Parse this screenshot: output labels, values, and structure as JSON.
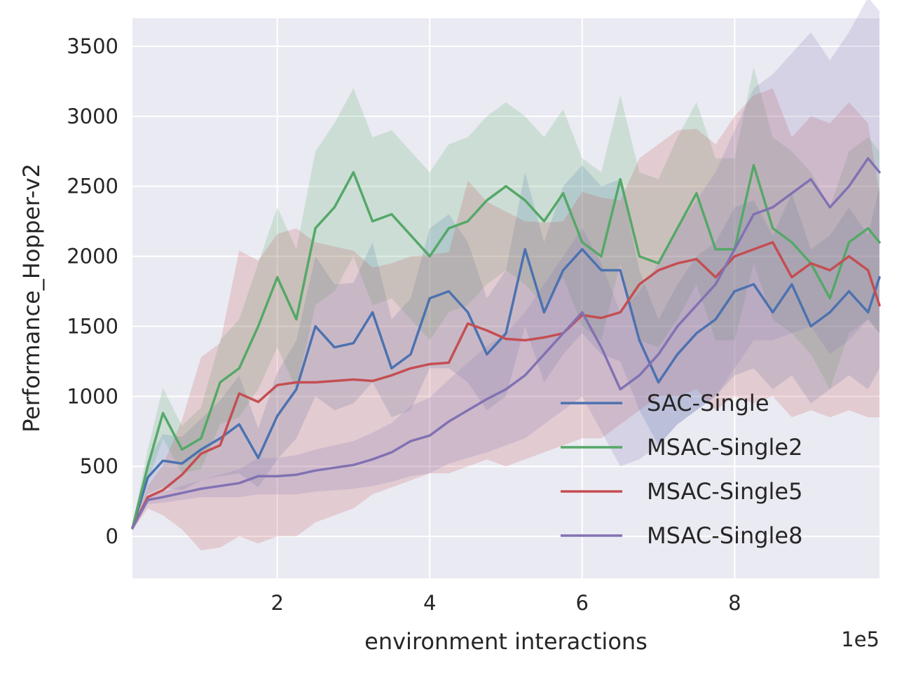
{
  "chart_data": {
    "type": "line",
    "title": "",
    "xlabel": "environment interactions",
    "ylabel": "Performance_Hopper-v2",
    "x_offset_label": "1e5",
    "xlim": [
      0.1,
      9.9
    ],
    "ylim": [
      -300,
      3700
    ],
    "x_ticks": [
      2,
      4,
      6,
      8
    ],
    "y_ticks": [
      0,
      500,
      1000,
      1500,
      2000,
      2500,
      3000,
      3500
    ],
    "grid": true,
    "legend_position": "lower-right",
    "x": [
      0.1,
      0.3,
      0.5,
      0.75,
      1.0,
      1.25,
      1.5,
      1.75,
      2.0,
      2.25,
      2.5,
      2.75,
      3.0,
      3.25,
      3.5,
      3.75,
      4.0,
      4.25,
      4.5,
      4.75,
      5.0,
      5.25,
      5.5,
      5.75,
      6.0,
      6.25,
      6.5,
      6.75,
      7.0,
      7.25,
      7.5,
      7.75,
      8.0,
      8.25,
      8.5,
      8.75,
      9.0,
      9.25,
      9.5,
      9.75,
      9.9
    ],
    "series": [
      {
        "name": "SAC-Single",
        "color": "#4c72b0",
        "values": [
          60,
          420,
          540,
          520,
          620,
          700,
          800,
          560,
          860,
          1050,
          1500,
          1350,
          1380,
          1600,
          1200,
          1300,
          1700,
          1750,
          1600,
          1300,
          1450,
          2050,
          1600,
          1900,
          2050,
          1900,
          1900,
          1400,
          1100,
          1300,
          1450,
          1550,
          1750,
          1800,
          1600,
          1800,
          1500,
          1600,
          1750,
          1600,
          1850
        ],
        "lower": [
          40,
          300,
          350,
          330,
          400,
          430,
          450,
          350,
          550,
          700,
          1000,
          900,
          950,
          1100,
          850,
          900,
          1200,
          1200,
          1100,
          900,
          1000,
          1500,
          1100,
          1300,
          1450,
          1300,
          1250,
          900,
          650,
          800,
          900,
          1000,
          1150,
          1200,
          1050,
          1150,
          950,
          1050,
          1150,
          1050,
          1200
        ],
        "upper": [
          80,
          540,
          730,
          710,
          840,
          970,
          1150,
          770,
          1170,
          1400,
          2000,
          1800,
          1810,
          2100,
          1550,
          1700,
          2200,
          2300,
          2100,
          1700,
          1900,
          2600,
          2100,
          2500,
          2650,
          2500,
          2550,
          1900,
          1550,
          1800,
          2000,
          2100,
          2350,
          2400,
          2150,
          2450,
          2050,
          2150,
          2350,
          2150,
          2500
        ]
      },
      {
        "name": "MSAC-Single2",
        "color": "#55a868",
        "values": [
          60,
          500,
          880,
          620,
          700,
          1100,
          1200,
          1500,
          1850,
          1550,
          2200,
          2350,
          2600,
          2250,
          2300,
          2150,
          2000,
          2200,
          2250,
          2400,
          2500,
          2400,
          2250,
          2450,
          2100,
          2000,
          2550,
          2000,
          1950,
          2200,
          2450,
          2050,
          2050,
          2650,
          2200,
          2100,
          1950,
          1700,
          2100,
          2200,
          2100
        ],
        "lower": [
          40,
          380,
          700,
          450,
          480,
          800,
          850,
          1050,
          1350,
          1050,
          1650,
          1750,
          2000,
          1650,
          1700,
          1550,
          1400,
          1600,
          1650,
          1800,
          1900,
          1800,
          1650,
          1850,
          1500,
          1400,
          1950,
          1400,
          1350,
          1550,
          1800,
          1400,
          1400,
          1950,
          1550,
          1450,
          1300,
          1050,
          1450,
          1550,
          1450
        ],
        "upper": [
          80,
          620,
          1060,
          790,
          920,
          1400,
          1550,
          1950,
          2350,
          2050,
          2750,
          2950,
          3200,
          2850,
          2900,
          2750,
          2600,
          2800,
          2850,
          3000,
          3100,
          3000,
          2850,
          3050,
          2700,
          2600,
          3150,
          2600,
          2550,
          2850,
          3100,
          2700,
          2700,
          3350,
          2850,
          2750,
          2600,
          2350,
          2750,
          2850,
          2750
        ]
      },
      {
        "name": "MSAC-Single5",
        "color": "#c44e52",
        "values": [
          60,
          280,
          330,
          440,
          590,
          650,
          1020,
          960,
          1080,
          1100,
          1100,
          1110,
          1120,
          1110,
          1150,
          1200,
          1230,
          1240,
          1520,
          1470,
          1410,
          1400,
          1420,
          1450,
          1580,
          1560,
          1600,
          1800,
          1900,
          1950,
          1980,
          1850,
          2000,
          2050,
          2100,
          1850,
          1950,
          1900,
          2000,
          1900,
          1650
        ],
        "lower": [
          40,
          200,
          150,
          50,
          -100,
          -80,
          0,
          -50,
          0,
          0,
          100,
          150,
          200,
          300,
          350,
          400,
          450,
          450,
          500,
          550,
          500,
          550,
          600,
          650,
          700,
          700,
          800,
          900,
          1000,
          1000,
          1050,
          900,
          1000,
          950,
          1000,
          850,
          900,
          850,
          900,
          850,
          850
        ],
        "upper": [
          80,
          360,
          510,
          830,
          1280,
          1380,
          2040,
          1970,
          2160,
          2200,
          2100,
          2070,
          2040,
          1920,
          1950,
          2000,
          2010,
          2030,
          2540,
          2390,
          2320,
          2250,
          2240,
          2250,
          2460,
          2420,
          2400,
          2700,
          2800,
          2900,
          2910,
          2800,
          3000,
          3150,
          3200,
          2850,
          3000,
          2950,
          3100,
          2950,
          2450
        ]
      },
      {
        "name": "MSAC-Single8",
        "color": "#8172b2",
        "values": [
          60,
          260,
          280,
          310,
          340,
          360,
          380,
          430,
          430,
          440,
          470,
          490,
          510,
          550,
          600,
          680,
          720,
          820,
          900,
          980,
          1050,
          1150,
          1300,
          1450,
          1600,
          1350,
          1050,
          1150,
          1300,
          1500,
          1650,
          1800,
          2050,
          2300,
          2350,
          2450,
          2550,
          2350,
          2500,
          2700,
          2600
        ],
        "lower": [
          40,
          230,
          240,
          260,
          280,
          280,
          280,
          300,
          300,
          300,
          320,
          330,
          340,
          360,
          390,
          430,
          450,
          520,
          560,
          600,
          650,
          700,
          800,
          900,
          1000,
          750,
          500,
          550,
          650,
          800,
          900,
          1000,
          1200,
          1400,
          1400,
          1450,
          1500,
          1300,
          1400,
          1550,
          1450
        ],
        "upper": [
          80,
          290,
          320,
          360,
          400,
          440,
          480,
          560,
          560,
          580,
          620,
          650,
          680,
          740,
          810,
          930,
          990,
          1120,
          1240,
          1360,
          1450,
          1600,
          1800,
          2000,
          2200,
          1950,
          1600,
          1750,
          1950,
          2200,
          2400,
          2600,
          2900,
          3200,
          3300,
          3450,
          3600,
          3400,
          3600,
          3850,
          3750
        ]
      }
    ]
  }
}
